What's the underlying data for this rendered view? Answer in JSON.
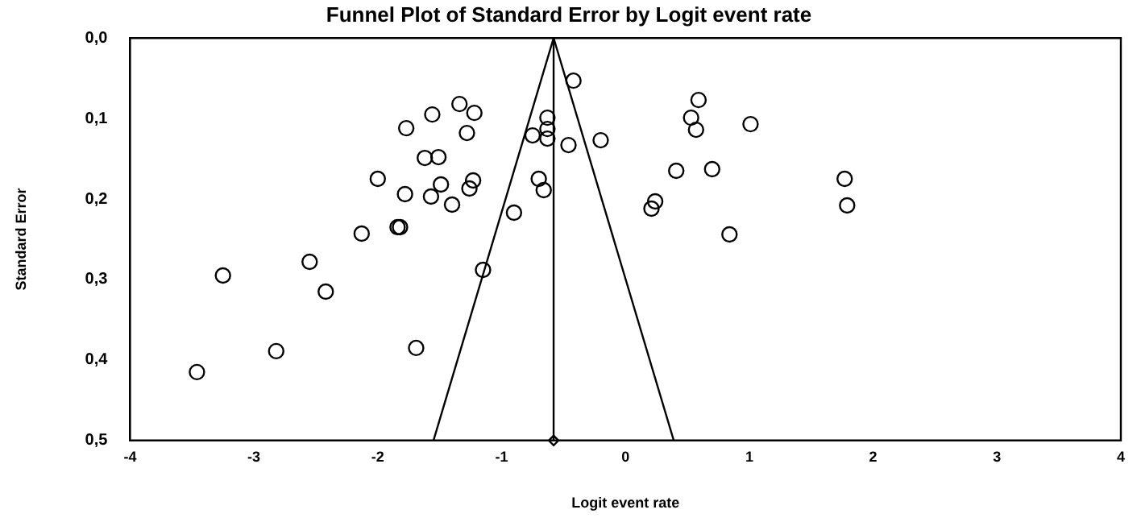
{
  "chart_data": {
    "type": "scatter",
    "title": "Funnel Plot of Standard Error by Logit event rate",
    "xlabel": "Logit event rate",
    "ylabel": "Standard Error",
    "xlim": [
      -4,
      4
    ],
    "xticks": [
      -4,
      -3,
      -2,
      -1,
      0,
      1,
      2,
      3,
      4
    ],
    "ylim": [
      0.5,
      0
    ],
    "yticks": [
      {
        "value": 0,
        "label": "0,0"
      },
      {
        "value": 0.1,
        "label": "0,1"
      },
      {
        "value": 0.2,
        "label": "0,2"
      },
      {
        "value": 0.3,
        "label": "0,3"
      },
      {
        "value": 0.4,
        "label": "0,4"
      },
      {
        "value": 0.5,
        "label": "0,5"
      }
    ],
    "grid": false,
    "legend": false,
    "series": [
      {
        "marker": "circle",
        "color": "#000000",
        "x": [
          -0.42,
          -1.34,
          -1.56,
          -1.22,
          -1.77,
          -1.28,
          -0.63,
          -0.63,
          -0.63,
          -0.75,
          -0.46,
          -1.62,
          -1.51,
          -2.0,
          -1.23,
          -1.49,
          -1.26,
          -1.78,
          -1.57,
          -1.4,
          -0.7,
          -0.66,
          -0.9,
          -1.84,
          -1.82,
          -2.13,
          -1.15,
          -2.55,
          -3.25,
          -2.42,
          -2.82,
          -1.69,
          -3.46,
          -0.2,
          0.59,
          0.53,
          0.57,
          1.01,
          0.41,
          0.7,
          0.24,
          0.21,
          0.84,
          1.77,
          1.79
        ],
        "values": [
          0.053,
          0.082,
          0.095,
          0.093,
          0.112,
          0.118,
          0.099,
          0.113,
          0.125,
          0.121,
          0.133,
          0.149,
          0.148,
          0.175,
          0.177,
          0.182,
          0.187,
          0.194,
          0.197,
          0.207,
          0.175,
          0.189,
          0.217,
          0.235,
          0.235,
          0.243,
          0.288,
          0.278,
          0.295,
          0.315,
          0.389,
          0.385,
          0.415,
          0.127,
          0.077,
          0.099,
          0.114,
          0.107,
          0.165,
          0.163,
          0.203,
          0.212,
          0.244,
          0.175,
          0.208
        ]
      },
      {
        "type": "line",
        "marker": "none",
        "line_style": "solid",
        "color": "#000000",
        "x": [
          -1.55,
          -0.58,
          0.39
        ],
        "values": [
          0.5,
          0,
          0.5
        ]
      },
      {
        "type": "line",
        "marker": "none",
        "line_style": "solid",
        "color": "#000000",
        "x": [
          -0.58,
          -0.58
        ],
        "values": [
          0,
          0.5
        ]
      },
      {
        "marker": "diamond",
        "color": "#000000",
        "x": [
          -0.58
        ],
        "values": [
          0.5
        ]
      }
    ]
  }
}
